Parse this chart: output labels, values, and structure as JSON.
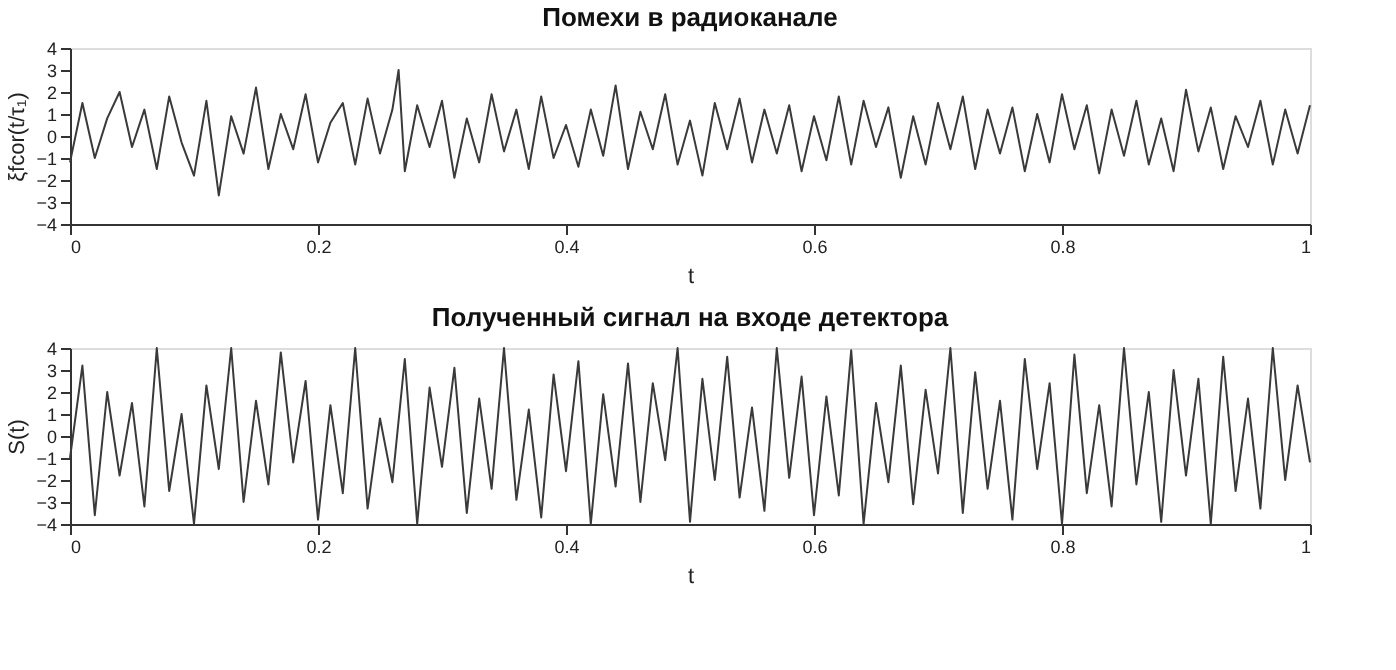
{
  "chart_data": [
    {
      "type": "line",
      "title": "Помехи в радиоканале",
      "xlabel": "t",
      "ylabel": "ξfcor(t/τ₁)",
      "xlim": [
        0,
        1
      ],
      "xticks": [
        0,
        0.2,
        0.4,
        0.6,
        0.8,
        1
      ],
      "ylim": [
        -4,
        4
      ],
      "yticks": [
        -4,
        -3,
        -2,
        -1,
        0,
        1,
        2,
        3,
        4
      ],
      "grid": false,
      "marker": "none",
      "line_style": "solid",
      "x": [
        0,
        0.01,
        0.02,
        0.03,
        0.04,
        0.05,
        0.06,
        0.07,
        0.08,
        0.09,
        0.1,
        0.11,
        0.12,
        0.13,
        0.14,
        0.15,
        0.16,
        0.17,
        0.18,
        0.19,
        0.2,
        0.21,
        0.22,
        0.23,
        0.24,
        0.25,
        0.26,
        0.265,
        0.27,
        0.28,
        0.29,
        0.3,
        0.31,
        0.32,
        0.33,
        0.34,
        0.35,
        0.36,
        0.37,
        0.38,
        0.39,
        0.4,
        0.41,
        0.42,
        0.43,
        0.44,
        0.45,
        0.46,
        0.47,
        0.48,
        0.49,
        0.5,
        0.51,
        0.52,
        0.53,
        0.54,
        0.55,
        0.56,
        0.57,
        0.58,
        0.59,
        0.6,
        0.61,
        0.62,
        0.63,
        0.64,
        0.65,
        0.66,
        0.67,
        0.68,
        0.69,
        0.7,
        0.71,
        0.72,
        0.73,
        0.74,
        0.75,
        0.76,
        0.77,
        0.78,
        0.79,
        0.8,
        0.81,
        0.82,
        0.83,
        0.84,
        0.85,
        0.86,
        0.87,
        0.88,
        0.89,
        0.9,
        0.91,
        0.92,
        0.93,
        0.94,
        0.95,
        0.96,
        0.97,
        0.98,
        0.99,
        1
      ],
      "series": [
        {
          "color": "#3a3a3a",
          "values": [
            -1.2,
            1.5,
            -1,
            0.8,
            2,
            -0.5,
            1.2,
            -1.5,
            1.8,
            -0.3,
            -1.8,
            1.6,
            -2.7,
            0.9,
            -0.8,
            2.2,
            -1.5,
            1,
            -0.6,
            1.9,
            -1.2,
            0.6,
            1.5,
            -1.3,
            1.7,
            -0.8,
            1.2,
            3,
            -1.6,
            1.4,
            -0.5,
            1.6,
            -1.9,
            0.8,
            -1.2,
            1.9,
            -0.7,
            1.2,
            -1.5,
            1.8,
            -1,
            0.5,
            -1.4,
            1.2,
            -0.9,
            2.3,
            -1.5,
            1.1,
            -0.6,
            1.9,
            -1.3,
            0.7,
            -1.8,
            1.5,
            -0.6,
            1.7,
            -1.2,
            1.2,
            -0.8,
            1.4,
            -1.6,
            0.9,
            -1.1,
            1.8,
            -1.3,
            1.6,
            -0.5,
            1.3,
            -1.9,
            0.9,
            -1.3,
            1.5,
            -0.6,
            1.8,
            -1.5,
            1.2,
            -0.8,
            1.3,
            -1.6,
            1,
            -1.2,
            1.9,
            -0.6,
            1.4,
            -1.7,
            1.2,
            -0.9,
            1.6,
            -1.3,
            0.8,
            -1.6,
            2.1,
            -0.7,
            1.3,
            -1.5,
            0.9,
            -0.5,
            1.6,
            -1.3,
            1.2,
            -0.8,
            1.4
          ]
        }
      ]
    },
    {
      "type": "line",
      "title": "Полученный сигнал на входе детектора",
      "xlabel": "t",
      "ylabel": "S(t)",
      "xlim": [
        0,
        1
      ],
      "xticks": [
        0,
        0.2,
        0.4,
        0.6,
        0.8,
        1
      ],
      "ylim": [
        -4,
        4
      ],
      "yticks": [
        -4,
        -3,
        -2,
        -1,
        0,
        1,
        2,
        3,
        4
      ],
      "grid": false,
      "marker": "none",
      "line_style": "solid",
      "x": [
        0,
        0.01,
        0.02,
        0.03,
        0.04,
        0.05,
        0.06,
        0.07,
        0.08,
        0.09,
        0.1,
        0.11,
        0.12,
        0.13,
        0.14,
        0.15,
        0.16,
        0.17,
        0.18,
        0.19,
        0.2,
        0.21,
        0.22,
        0.23,
        0.24,
        0.25,
        0.26,
        0.27,
        0.28,
        0.29,
        0.3,
        0.31,
        0.32,
        0.33,
        0.34,
        0.35,
        0.36,
        0.37,
        0.38,
        0.39,
        0.4,
        0.41,
        0.42,
        0.43,
        0.44,
        0.45,
        0.46,
        0.47,
        0.48,
        0.49,
        0.5,
        0.51,
        0.52,
        0.53,
        0.54,
        0.55,
        0.56,
        0.57,
        0.58,
        0.59,
        0.6,
        0.61,
        0.62,
        0.63,
        0.64,
        0.65,
        0.66,
        0.67,
        0.68,
        0.69,
        0.7,
        0.71,
        0.72,
        0.73,
        0.74,
        0.75,
        0.76,
        0.77,
        0.78,
        0.79,
        0.8,
        0.81,
        0.82,
        0.83,
        0.84,
        0.85,
        0.86,
        0.87,
        0.88,
        0.89,
        0.9,
        0.91,
        0.92,
        0.93,
        0.94,
        0.95,
        0.96,
        0.97,
        0.98,
        0.99,
        1
      ],
      "series": [
        {
          "color": "#3a3a3a",
          "values": [
            -1,
            3.2,
            -3.6,
            2,
            -1.8,
            1.5,
            -3.2,
            4,
            -2.5,
            1,
            -4,
            2.3,
            -1.5,
            4,
            -3,
            1.6,
            -2.2,
            3.8,
            -1.2,
            2.5,
            -3.8,
            1.4,
            -2.6,
            4,
            -3.3,
            0.8,
            -2.1,
            3.5,
            -4,
            2.2,
            -1.4,
            3.1,
            -3.5,
            1.7,
            -2.4,
            4,
            -2.9,
            1.2,
            -3.7,
            2.8,
            -1.6,
            3.4,
            -4,
            1.9,
            -2.3,
            3.3,
            -3,
            2.4,
            -1.1,
            4,
            -3.9,
            2.6,
            -2,
            3.6,
            -2.8,
            1.3,
            -3.4,
            4,
            -1.9,
            2.7,
            -3.6,
            1.8,
            -2.7,
            3.9,
            -4,
            1.5,
            -2.1,
            3.2,
            -3.1,
            2.1,
            -1.7,
            4,
            -3.5,
            2.9,
            -2.4,
            1.6,
            -3.8,
            3.5,
            -1.5,
            2.4,
            -4,
            3.7,
            -2.6,
            1.4,
            -3.2,
            4,
            -2.2,
            2,
            -3.9,
            3,
            -1.8,
            2.6,
            -4,
            3.6,
            -2.5,
            1.7,
            -3.3,
            4,
            -2,
            2.3,
            -1.2
          ]
        }
      ]
    }
  ]
}
